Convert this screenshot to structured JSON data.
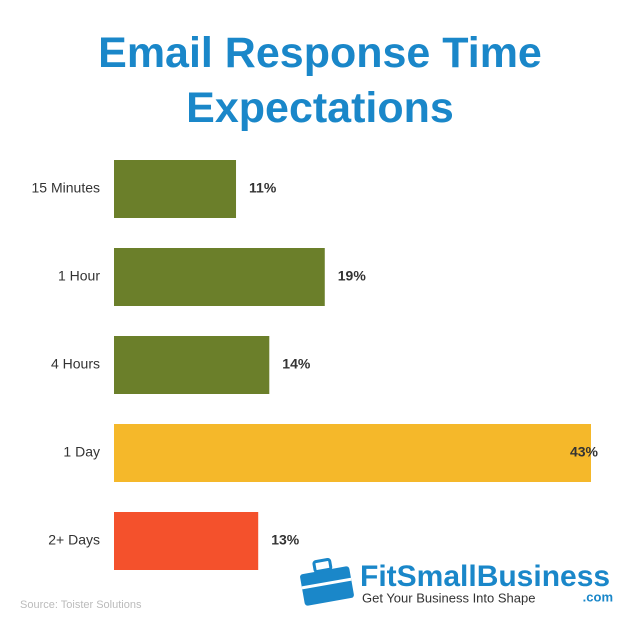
{
  "chart_data": {
    "type": "bar",
    "orientation": "horizontal",
    "title": "Email Response Time Expectations",
    "categories": [
      "15 Minutes",
      "1 Hour",
      "4 Hours",
      "1 Day",
      "2+ Days"
    ],
    "values": [
      11,
      19,
      14,
      43,
      13
    ],
    "value_labels": [
      "11%",
      "19%",
      "14%",
      "43%",
      "13%"
    ],
    "colors": [
      "#6b7f2a",
      "#6b7f2a",
      "#6b7f2a",
      "#f5b82a",
      "#f4512c"
    ],
    "source": "Source: Toister Solutions"
  },
  "logo": {
    "name": "FitSmallBusiness",
    "domain": ".com",
    "tagline": "Get Your Business Into Shape"
  }
}
